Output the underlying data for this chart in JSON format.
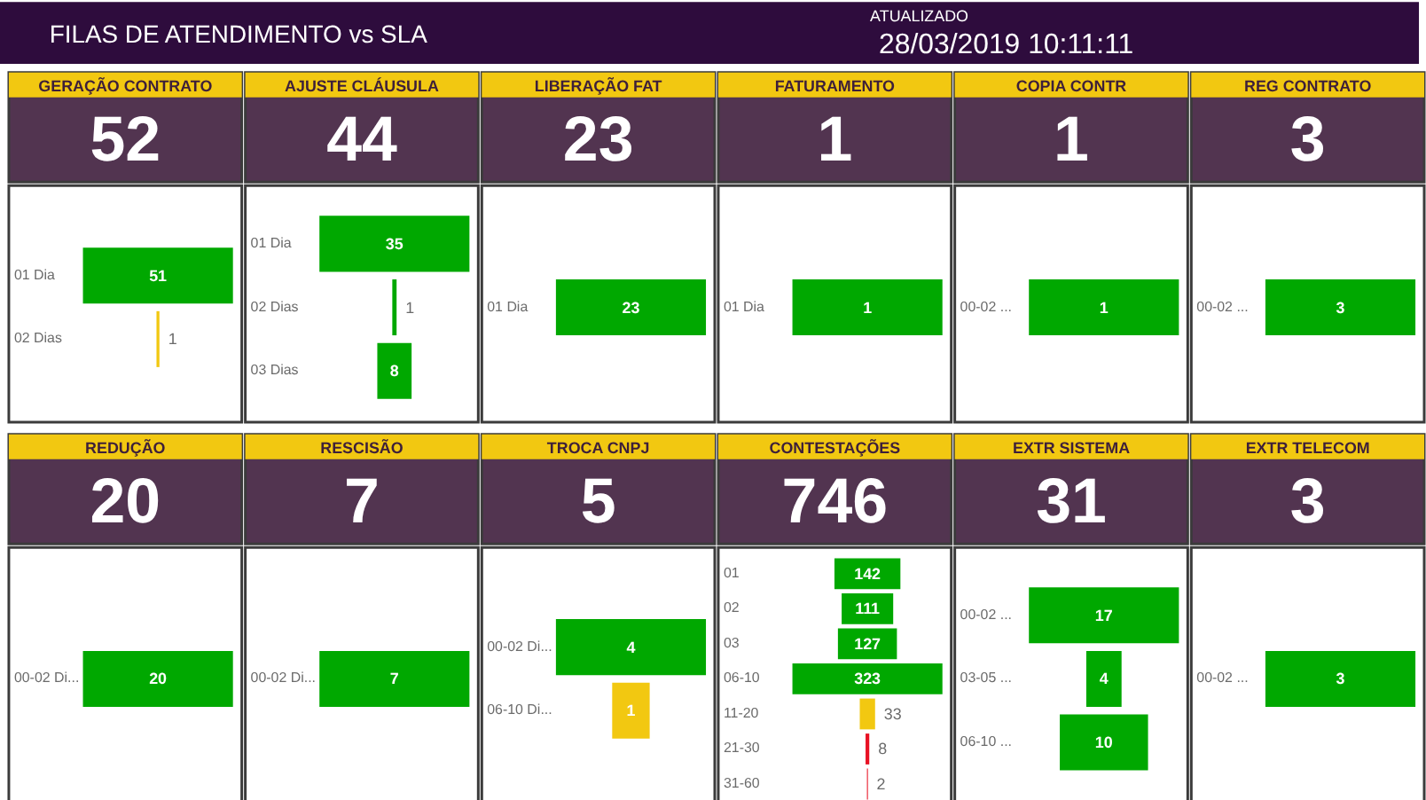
{
  "chart_data": [
    {
      "type": "other",
      "title": "FILAS DE ATENDIMENTO vs SLA",
      "annotations": [
        "ATUALIZADO",
        "28/03/2019 10:11:11"
      ]
    },
    {
      "type": "other",
      "title": "GERAÇÃO CONTRATO",
      "subtitle": "52",
      "categories": [
        "01 Dia",
        "02 Dias"
      ],
      "values": [
        51,
        1
      ],
      "colors": [
        "#00a800",
        "#f2c811"
      ],
      "data_labels": true
    },
    {
      "type": "other",
      "title": "AJUSTE CLÁUSULA",
      "subtitle": "44",
      "categories": [
        "01 Dia",
        "02 Dias",
        "03 Dias"
      ],
      "values": [
        35,
        1,
        8
      ],
      "colors": [
        "#00a800",
        "#00a800",
        "#00a800"
      ],
      "data_labels": true
    },
    {
      "type": "other",
      "title": "LIBERAÇÃO FAT",
      "subtitle": "23",
      "categories": [
        "01 Dia"
      ],
      "values": [
        23
      ],
      "colors": [
        "#00a800"
      ],
      "data_labels": true
    },
    {
      "type": "other",
      "title": "FATURAMENTO",
      "subtitle": "1",
      "categories": [
        "01 Dia"
      ],
      "values": [
        1
      ],
      "colors": [
        "#00a800"
      ],
      "data_labels": true
    },
    {
      "type": "other",
      "title": "COPIA CONTR",
      "subtitle": "1",
      "categories": [
        "00-02 ..."
      ],
      "values": [
        1
      ],
      "colors": [
        "#00a800"
      ],
      "data_labels": true
    },
    {
      "type": "other",
      "title": "REG CONTRATO",
      "subtitle": "3",
      "categories": [
        "00-02 ..."
      ],
      "values": [
        3
      ],
      "colors": [
        "#00a800"
      ],
      "data_labels": true
    },
    {
      "type": "other",
      "title": "REDUÇÃO",
      "subtitle": "20",
      "categories": [
        "00-02 Di..."
      ],
      "values": [
        20
      ],
      "colors": [
        "#00a800"
      ],
      "data_labels": true
    },
    {
      "type": "other",
      "title": "RESCISÃO",
      "subtitle": "7",
      "categories": [
        "00-02 Di..."
      ],
      "values": [
        7
      ],
      "colors": [
        "#00a800"
      ],
      "data_labels": true
    },
    {
      "type": "other",
      "title": "TROCA CNPJ",
      "subtitle": "5",
      "categories": [
        "00-02 Di...",
        "06-10 Di..."
      ],
      "values": [
        4,
        1
      ],
      "colors": [
        "#00a800",
        "#f2c811"
      ],
      "data_labels": true
    },
    {
      "type": "other",
      "title": "CONTESTAÇÕES",
      "subtitle": "746",
      "categories": [
        "01",
        "02",
        "03",
        "06-10",
        "11-20",
        "21-30",
        "31-60"
      ],
      "values": [
        142,
        111,
        127,
        323,
        33,
        8,
        2
      ],
      "colors": [
        "#00a800",
        "#00a800",
        "#00a800",
        "#00a800",
        "#f2c811",
        "#e81123",
        "#e81123"
      ],
      "data_labels": true
    },
    {
      "type": "other",
      "title": "EXTR SISTEMA",
      "subtitle": "31",
      "categories": [
        "00-02 ...",
        "03-05 ...",
        "06-10 ..."
      ],
      "values": [
        17,
        4,
        10
      ],
      "colors": [
        "#00a800",
        "#00a800",
        "#00a800"
      ],
      "data_labels": true
    },
    {
      "type": "other",
      "title": "EXTR TELECOM",
      "subtitle": "3",
      "categories": [
        "00-02 ..."
      ],
      "values": [
        3
      ],
      "colors": [
        "#00a800"
      ],
      "data_labels": true
    }
  ]
}
